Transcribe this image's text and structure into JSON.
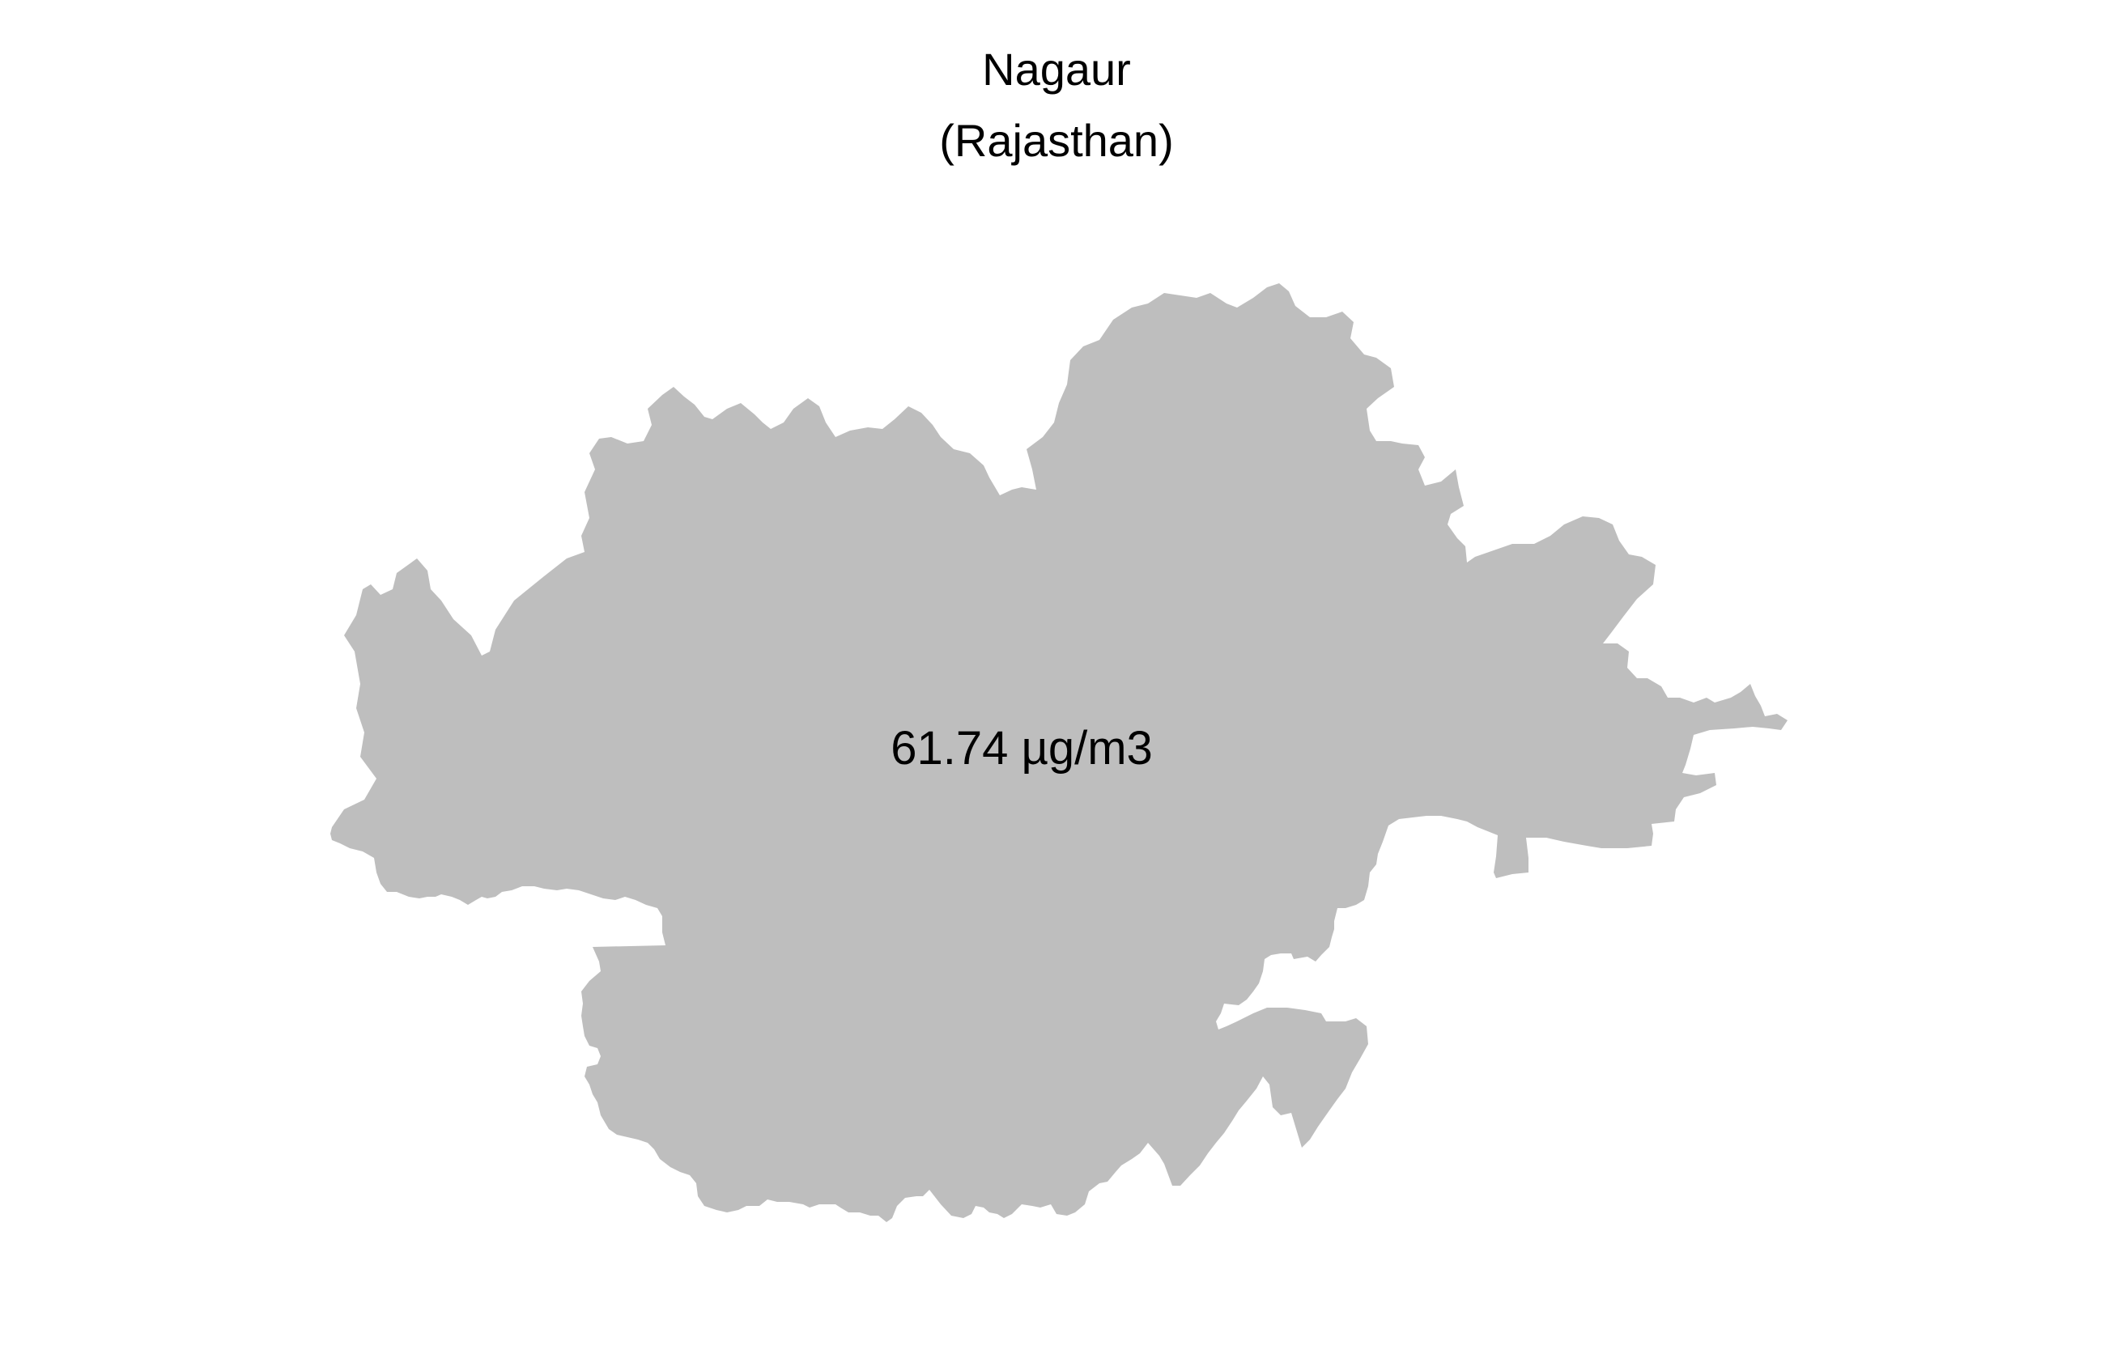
{
  "map": {
    "district": "Nagaur",
    "state": "(Rajasthan)",
    "value_label": "61.74 µg/m3",
    "fill_color": "#bebebe",
    "background_color": "#ffffff",
    "text_color": "#000000"
  }
}
